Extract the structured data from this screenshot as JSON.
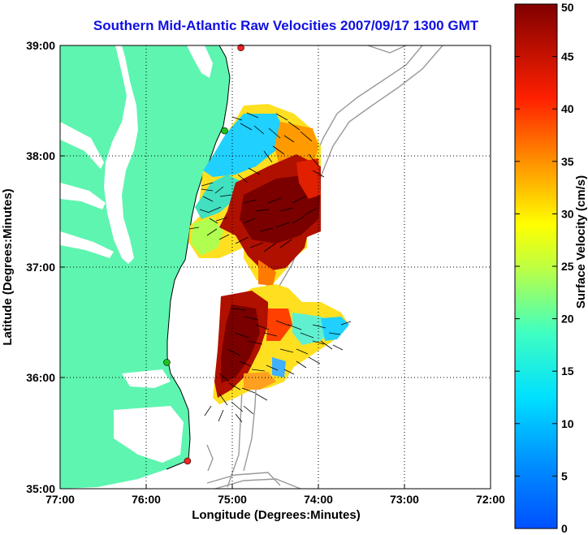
{
  "title": "Southern Mid-Atlantic Raw Velocities 2007/09/17 1300 GMT",
  "map": {
    "xlabel": "Longitude (Degrees:Minutes)",
    "ylabel": "Latitude (Degrees:Minutes)",
    "x_ticks": [
      "77:00",
      "76:00",
      "75:00",
      "74:00",
      "73:00",
      "72:00"
    ],
    "y_ticks": [
      "39:00",
      "38:00",
      "37:00",
      "36:00",
      "35:00"
    ],
    "lon_range": [
      -77,
      -72
    ],
    "lat_range": [
      35,
      39
    ],
    "grid": "dotted",
    "colors": {
      "land": "#5ef5b0",
      "ocean": "#ffffff",
      "bathymetry": "#999999",
      "station": "#ff2020",
      "station_alt": "#20c020"
    },
    "stations": [
      {
        "lon": -74.9,
        "lat": 38.98,
        "color": "red"
      },
      {
        "lon": -75.09,
        "lat": 38.23,
        "color": "green"
      },
      {
        "lon": -75.76,
        "lat": 36.14,
        "color": "green"
      },
      {
        "lon": -75.52,
        "lat": 35.25,
        "color": "red"
      }
    ]
  },
  "colorbar": {
    "label": "Surface Velocity (cm/s)",
    "ticks": [
      "0",
      "5",
      "10",
      "15",
      "20",
      "25",
      "30",
      "35",
      "40",
      "45",
      "50"
    ],
    "range": [
      0,
      50
    ],
    "colormap": "jet"
  }
}
